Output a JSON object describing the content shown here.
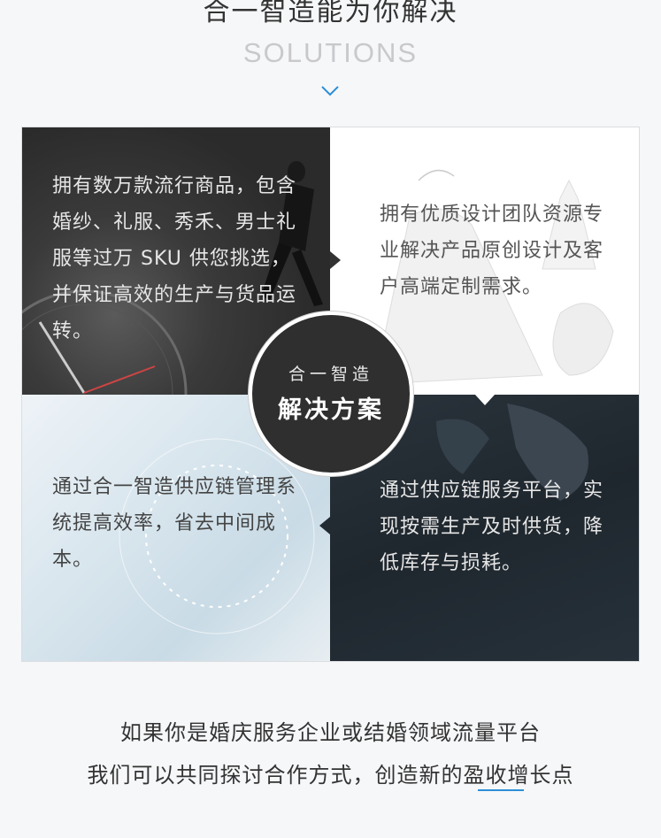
{
  "header": {
    "title": "合一智造能为你解决",
    "subtitle": "SOLUTIONS",
    "accent": "#2b8fd6"
  },
  "cells": [
    {
      "id": "top-left",
      "text": "拥有数万款流行商品，包含婚纱、礼服、秀禾、男士礼服等过万 SKU 供您挑选，并保证高效的生产与货品运转。"
    },
    {
      "id": "top-right",
      "text": "拥有优质设计团队资源专业解决产品原创设计及客户高端定制需求。"
    },
    {
      "id": "bottom-left",
      "text": "通过合一智造供应链管理系统提高效率，省去中间成本。"
    },
    {
      "id": "bottom-right",
      "text": "通过供应链服务平台，实现按需生产及时供货，降低库存与损耗。"
    }
  ],
  "center": {
    "small": "合一智造",
    "big": "解决方案"
  },
  "footer": {
    "line1": "如果你是婚庆服务企业或结婚领域流量平台",
    "line2": "我们可以共同探讨合作方式，创造新的盈收增长点"
  }
}
